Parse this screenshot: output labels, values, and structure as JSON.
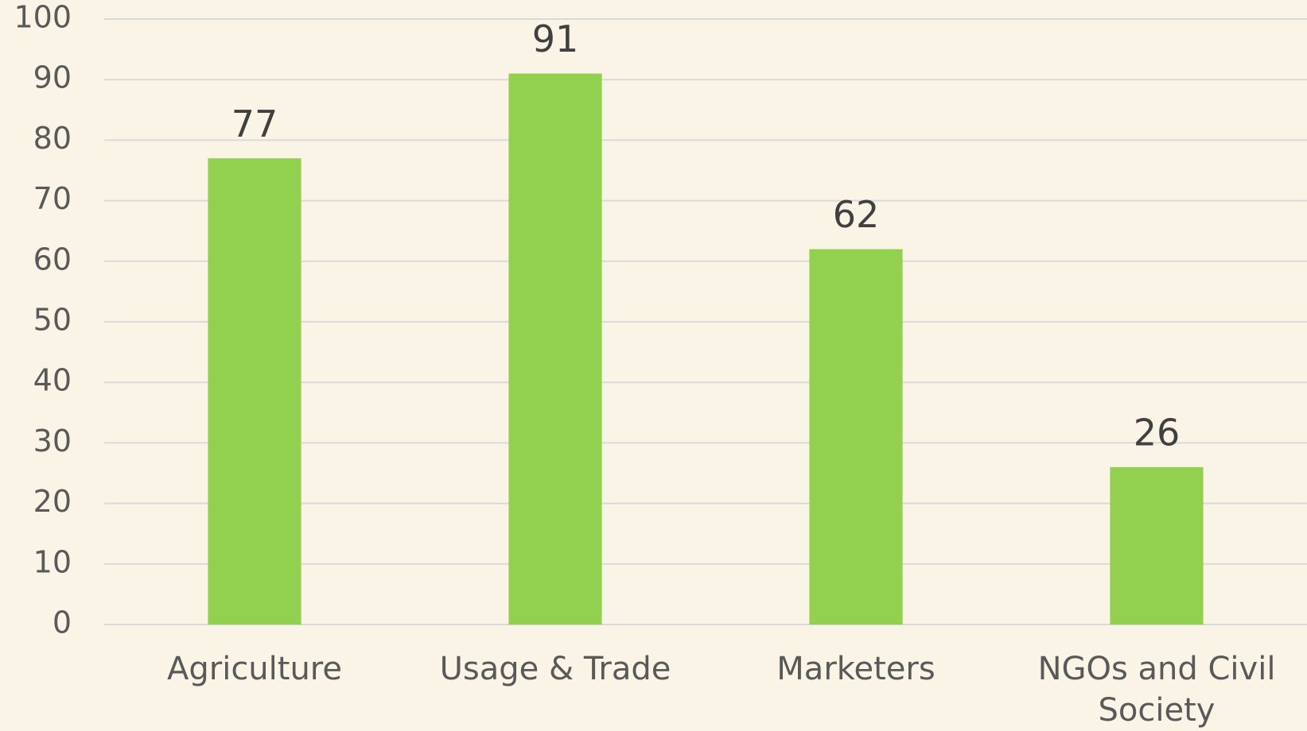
{
  "chart_data": {
    "type": "bar",
    "categories": [
      "Agriculture",
      "Usage & Trade",
      "Marketers",
      "NGOs and Civil Society"
    ],
    "values": [
      77,
      91,
      62,
      26
    ],
    "color": "#92d050",
    "ylim": [
      0,
      100
    ],
    "yticks": [
      0,
      10,
      20,
      30,
      40,
      50,
      60,
      70,
      80,
      90,
      100
    ],
    "grid": true
  }
}
